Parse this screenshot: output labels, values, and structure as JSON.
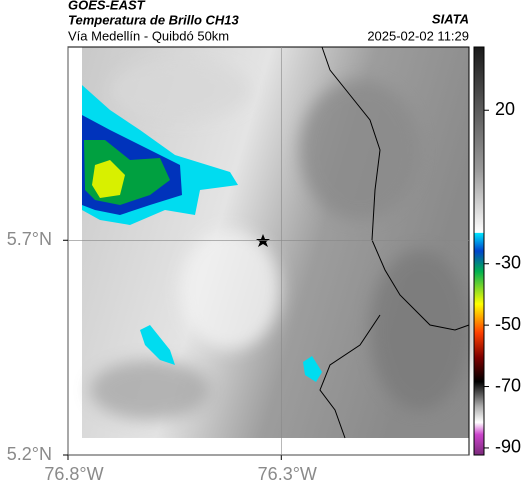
{
  "header": {
    "satellite": "GOES-EAST",
    "title": "Temperatura de Brillo CH13",
    "subtitle": "Vía Medellín - Quibdó 50km",
    "source": "SIATA",
    "datetime": "2025-02-02 11:29"
  },
  "map": {
    "xlim": [
      -76.8,
      -75.86
    ],
    "ylim": [
      5.2,
      6.15
    ],
    "xticks": [
      {
        "value": -76.8,
        "label": "76.8°W"
      },
      {
        "value": -76.3,
        "label": "76.3°W"
      }
    ],
    "yticks": [
      {
        "value": 5.2,
        "label": "5.2°N"
      },
      {
        "value": 5.7,
        "label": "5.7°N"
      }
    ],
    "grid": true
  },
  "colorbar": {
    "lim": [
      -92.3,
      40.6
    ],
    "ticks": [
      20,
      -30,
      -50,
      -70,
      -90
    ]
  }
}
